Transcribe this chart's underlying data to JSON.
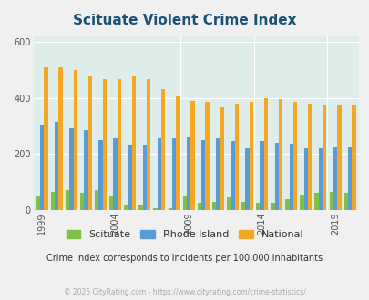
{
  "title": "Scituate Violent Crime Index",
  "subtitle": "Crime Index corresponds to incidents per 100,000 inhabitants",
  "footer": "© 2025 CityRating.com - https://www.cityrating.com/crime-statistics/",
  "years": [
    1999,
    2000,
    2001,
    2002,
    2003,
    2004,
    2005,
    2006,
    2007,
    2008,
    2009,
    2010,
    2011,
    2012,
    2013,
    2014,
    2015,
    2016,
    2017,
    2018,
    2019,
    2020
  ],
  "scituate": [
    50,
    65,
    70,
    60,
    70,
    50,
    20,
    15,
    5,
    5,
    50,
    25,
    30,
    45,
    30,
    25,
    25,
    40,
    55,
    60,
    65,
    60
  ],
  "rhode_island": [
    300,
    315,
    290,
    285,
    250,
    255,
    230,
    230,
    255,
    255,
    260,
    250,
    255,
    245,
    220,
    245,
    240,
    235,
    220,
    220,
    225,
    225
  ],
  "national": [
    510,
    510,
    500,
    475,
    465,
    465,
    475,
    465,
    430,
    405,
    390,
    385,
    365,
    380,
    385,
    400,
    395,
    385,
    380,
    375,
    375,
    375
  ],
  "ylim": [
    0,
    620
  ],
  "yticks": [
    0,
    200,
    400,
    600
  ],
  "xtick_years": [
    1999,
    2004,
    2009,
    2014,
    2019
  ],
  "bar_colors": {
    "scituate": "#7dc242",
    "rhode_island": "#5b9bd5",
    "national": "#f5a623"
  },
  "bg_color": "#f0f0f0",
  "plot_bg_color": "#deecea",
  "title_color": "#1a5276",
  "subtitle_color": "#333333",
  "footer_color": "#aaaaaa",
  "legend_labels": [
    "Scituate",
    "Rhode Island",
    "National"
  ]
}
